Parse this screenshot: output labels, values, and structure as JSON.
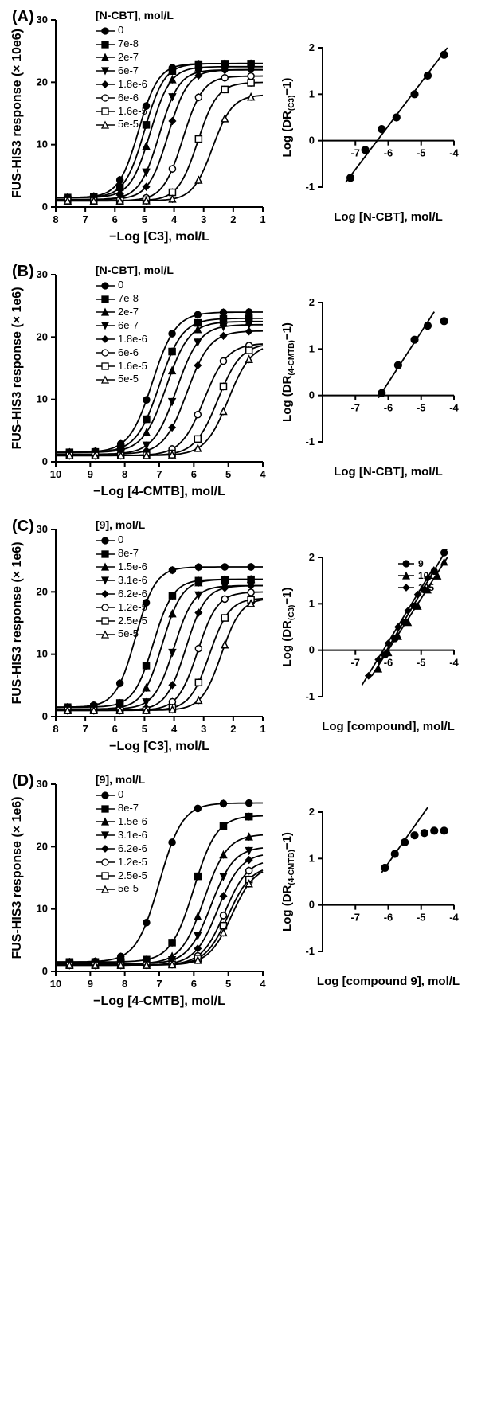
{
  "colors": {
    "axis": "#000000",
    "series": "#000000",
    "bg": "#ffffff"
  },
  "font": {
    "label_size": 16,
    "tick_size": 13,
    "legend_size": 13,
    "panel_label_size": 20
  },
  "panels": [
    {
      "label": "(A)",
      "main": {
        "type": "dose-response",
        "legend_title": "[N-CBT], mol/L",
        "legend_items": [
          "0",
          "7e-8",
          "2e-7",
          "6e-7",
          "1.8e-6",
          "6e-6",
          "1.6e-5",
          "5e-5"
        ],
        "markers": [
          "filled-circle",
          "filled-square",
          "filled-triangle-up",
          "filled-triangle-down",
          "filled-diamond",
          "open-circle",
          "open-square",
          "open-triangle-up"
        ],
        "xlabel": "−Log [C3], mol/L",
        "ylabel": "FUS-HIS3 response (× 10e6)",
        "xlim": [
          8,
          1
        ],
        "xtick_step": 1,
        "x_reversed": true,
        "ylim": [
          0,
          30
        ],
        "ytick_step": 10,
        "series": [
          {
            "ec50": 5.2,
            "max": 23,
            "min": 1.5
          },
          {
            "ec50": 5.0,
            "max": 23,
            "min": 1.5
          },
          {
            "ec50": 4.8,
            "max": 22.5,
            "min": 1.5
          },
          {
            "ec50": 4.5,
            "max": 22,
            "min": 1.2
          },
          {
            "ec50": 4.2,
            "max": 22,
            "min": 1.2
          },
          {
            "ec50": 3.7,
            "max": 21,
            "min": 1.0
          },
          {
            "ec50": 3.2,
            "max": 20,
            "min": 1.0
          },
          {
            "ec50": 2.7,
            "max": 18,
            "min": 1.0
          }
        ]
      },
      "schild": {
        "type": "schild",
        "xlabel": "Log [N-CBT], mol/L",
        "ylabel": "Log (DR(C3)−1)",
        "ylabel_sub": "(C3)",
        "xlim": [
          -8,
          -4
        ],
        "xticks": [
          -7,
          -6,
          -5,
          -4
        ],
        "ylim": [
          -1,
          2
        ],
        "yticks": [
          -1,
          0,
          1,
          2
        ],
        "points": [
          {
            "x": -7.15,
            "y": -0.8
          },
          {
            "x": -6.7,
            "y": -0.2
          },
          {
            "x": -6.2,
            "y": 0.25
          },
          {
            "x": -5.75,
            "y": 0.5
          },
          {
            "x": -5.2,
            "y": 1.0
          },
          {
            "x": -4.8,
            "y": 1.4
          },
          {
            "x": -4.3,
            "y": 1.85
          }
        ],
        "line": {
          "x1": -7.3,
          "y1": -0.9,
          "x2": -4.2,
          "y2": 2.0
        },
        "marker": "filled-circle"
      }
    },
    {
      "label": "(B)",
      "main": {
        "type": "dose-response",
        "legend_title": "[N-CBT], mol/L",
        "legend_items": [
          "0",
          "7e-8",
          "2e-7",
          "6e-7",
          "1.8e-6",
          "6e-6",
          "1.6e-5",
          "5e-5"
        ],
        "markers": [
          "filled-circle",
          "filled-square",
          "filled-triangle-up",
          "filled-triangle-down",
          "filled-diamond",
          "open-circle",
          "open-square",
          "open-triangle-up"
        ],
        "xlabel": "−Log [4-CMTB], mol/L",
        "ylabel": "FUS-HIS3 response (× 1e6)",
        "xlim": [
          10,
          4
        ],
        "xtick_step": 1,
        "x_reversed": true,
        "ylim": [
          0,
          30
        ],
        "ytick_step": 10,
        "series": [
          {
            "ec50": 7.2,
            "max": 24,
            "min": 1.5
          },
          {
            "ec50": 7.0,
            "max": 23,
            "min": 1.5
          },
          {
            "ec50": 6.8,
            "max": 22.5,
            "min": 1.5
          },
          {
            "ec50": 6.5,
            "max": 22,
            "min": 1.2
          },
          {
            "ec50": 6.2,
            "max": 21,
            "min": 1.2
          },
          {
            "ec50": 5.7,
            "max": 19,
            "min": 1.0
          },
          {
            "ec50": 5.3,
            "max": 19,
            "min": 1.0
          },
          {
            "ec50": 5.0,
            "max": 19,
            "min": 1.0
          }
        ]
      },
      "schild": {
        "type": "schild",
        "xlabel": "Log [N-CBT], mol/L",
        "ylabel": "Log (DR(4-CMTB)−1)",
        "ylabel_sub": "(4-CMTB)",
        "xlim": [
          -8,
          -4
        ],
        "xticks": [
          -7,
          -6,
          -5,
          -4
        ],
        "ylim": [
          -1,
          2
        ],
        "yticks": [
          -1,
          0,
          1,
          2
        ],
        "points": [
          {
            "x": -6.2,
            "y": 0.05
          },
          {
            "x": -5.7,
            "y": 0.65
          },
          {
            "x": -5.2,
            "y": 1.2
          },
          {
            "x": -4.8,
            "y": 1.5
          },
          {
            "x": -4.3,
            "y": 1.6
          }
        ],
        "line": {
          "x1": -6.3,
          "y1": -0.05,
          "x2": -4.6,
          "y2": 1.8
        },
        "marker": "filled-circle"
      }
    },
    {
      "label": "(C)",
      "main": {
        "type": "dose-response",
        "legend_title": "[9], mol/L",
        "legend_items": [
          "0",
          "8e-7",
          "1.5e-6",
          "3.1e-6",
          "6.2e-6",
          "1.2e-5",
          "2.5e-5",
          "5e-5"
        ],
        "markers": [
          "filled-circle",
          "filled-square",
          "filled-triangle-up",
          "filled-triangle-down",
          "filled-diamond",
          "open-circle",
          "open-square",
          "open-triangle-up"
        ],
        "xlabel": "−Log [C3], mol/L",
        "ylabel": "FUS-HIS3 response (× 1e6)",
        "xlim": [
          8,
          1
        ],
        "xtick_step": 1,
        "x_reversed": true,
        "ylim": [
          0,
          30
        ],
        "ytick_step": 10,
        "series": [
          {
            "ec50": 5.3,
            "max": 24,
            "min": 1.5
          },
          {
            "ec50": 4.7,
            "max": 22,
            "min": 1.5
          },
          {
            "ec50": 4.4,
            "max": 22,
            "min": 1.2
          },
          {
            "ec50": 4.0,
            "max": 21,
            "min": 1.2
          },
          {
            "ec50": 3.6,
            "max": 21,
            "min": 1.0
          },
          {
            "ec50": 3.2,
            "max": 20,
            "min": 1.0
          },
          {
            "ec50": 2.8,
            "max": 19,
            "min": 1.0
          },
          {
            "ec50": 2.4,
            "max": 19,
            "min": 1.0
          }
        ]
      },
      "schild": {
        "type": "schild-multi",
        "xlabel": "Log [compound], mol/L",
        "ylabel": "Log (DR(C3)−1)",
        "ylabel_sub": "(C3)",
        "xlim": [
          -8,
          -4
        ],
        "xticks": [
          -7,
          -6,
          -5,
          -4
        ],
        "ylim": [
          -1,
          2
        ],
        "yticks": [
          -1,
          0,
          1,
          2
        ],
        "legend_items": [
          "9",
          "101",
          "105"
        ],
        "legend_markers": [
          "filled-circle",
          "filled-triangle-up",
          "filled-diamond"
        ],
        "series": [
          {
            "marker": "filled-circle",
            "points": [
              {
                "x": -6.1,
                "y": -0.1
              },
              {
                "x": -5.8,
                "y": 0.25
              },
              {
                "x": -5.5,
                "y": 0.6
              },
              {
                "x": -5.2,
                "y": 0.95
              },
              {
                "x": -4.9,
                "y": 1.3
              },
              {
                "x": -4.6,
                "y": 1.7
              },
              {
                "x": -4.3,
                "y": 2.1
              }
            ],
            "line": {
              "x1": -6.3,
              "y1": -0.3,
              "x2": -4.2,
              "y2": 2.2
            }
          },
          {
            "marker": "filled-triangle-up",
            "points": [
              {
                "x": -6.3,
                "y": -0.4
              },
              {
                "x": -6.0,
                "y": -0.05
              },
              {
                "x": -5.7,
                "y": 0.3
              },
              {
                "x": -5.4,
                "y": 0.6
              },
              {
                "x": -5.1,
                "y": 0.95
              },
              {
                "x": -4.8,
                "y": 1.3
              },
              {
                "x": -4.5,
                "y": 1.6
              },
              {
                "x": -4.3,
                "y": 1.9
              }
            ],
            "line": {
              "x1": -6.5,
              "y1": -0.55,
              "x2": -4.2,
              "y2": 2.0
            }
          },
          {
            "marker": "filled-diamond",
            "points": [
              {
                "x": -6.6,
                "y": -0.55
              },
              {
                "x": -6.3,
                "y": -0.2
              },
              {
                "x": -6.0,
                "y": 0.15
              },
              {
                "x": -5.7,
                "y": 0.5
              },
              {
                "x": -5.4,
                "y": 0.85
              },
              {
                "x": -5.1,
                "y": 1.2
              },
              {
                "x": -4.8,
                "y": 1.55
              }
            ],
            "line": {
              "x1": -6.8,
              "y1": -0.75,
              "x2": -4.6,
              "y2": 1.8
            }
          }
        ]
      }
    },
    {
      "label": "(D)",
      "main": {
        "type": "dose-response",
        "legend_title": "[9], mol/L",
        "legend_items": [
          "0",
          "8e-7",
          "1.5e-6",
          "3.1e-6",
          "6.2e-6",
          "1.2e-5",
          "2.5e-5",
          "5e-5"
        ],
        "markers": [
          "filled-circle",
          "filled-square",
          "filled-triangle-up",
          "filled-triangle-down",
          "filled-diamond",
          "open-circle",
          "open-square",
          "open-triangle-up"
        ],
        "xlabel": "−Log [4-CMTB], mol/L",
        "ylabel": "FUS-HIS3 response (× 1e6)",
        "xlim": [
          10,
          4
        ],
        "xtick_step": 1,
        "x_reversed": true,
        "ylim": [
          0,
          30
        ],
        "ytick_step": 10,
        "series": [
          {
            "ec50": 7.0,
            "max": 27,
            "min": 1.5
          },
          {
            "ec50": 6.0,
            "max": 25,
            "min": 1.5
          },
          {
            "ec50": 5.7,
            "max": 22,
            "min": 1.2
          },
          {
            "ec50": 5.5,
            "max": 20,
            "min": 1.2
          },
          {
            "ec50": 5.3,
            "max": 19,
            "min": 1.0
          },
          {
            "ec50": 5.1,
            "max": 18,
            "min": 1.0
          },
          {
            "ec50": 5.0,
            "max": 17,
            "min": 1.0
          },
          {
            "ec50": 4.9,
            "max": 17,
            "min": 1.0
          }
        ]
      },
      "schild": {
        "type": "schild",
        "xlabel": "Log [compound 9], mol/L",
        "ylabel": "Log(DR(4-CMTB)−1)",
        "ylabel_sub": "(4-CMTB)",
        "xlim": [
          -8,
          -4
        ],
        "xticks": [
          -7,
          -6,
          -5,
          -4
        ],
        "ylim": [
          -1,
          2
        ],
        "yticks": [
          -1,
          0,
          1,
          2
        ],
        "points": [
          {
            "x": -6.1,
            "y": 0.8
          },
          {
            "x": -5.8,
            "y": 1.1
          },
          {
            "x": -5.5,
            "y": 1.35
          },
          {
            "x": -5.2,
            "y": 1.5
          },
          {
            "x": -4.9,
            "y": 1.55
          },
          {
            "x": -4.6,
            "y": 1.6
          },
          {
            "x": -4.3,
            "y": 1.6
          }
        ],
        "line": {
          "x1": -6.2,
          "y1": 0.7,
          "x2": -4.8,
          "y2": 2.1
        },
        "marker": "filled-circle"
      }
    }
  ]
}
